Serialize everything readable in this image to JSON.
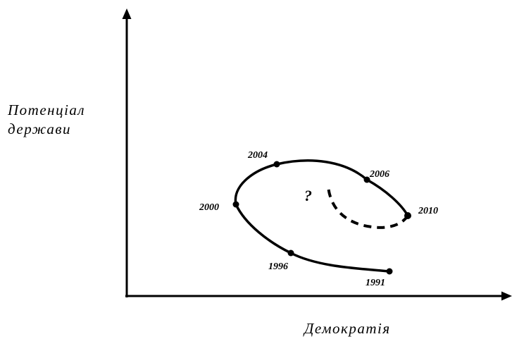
{
  "axes": {
    "y_label_lines": [
      "Потенціал",
      "держави"
    ],
    "x_label": "Демократія"
  },
  "points": [
    {
      "year": "1991"
    },
    {
      "year": "1996"
    },
    {
      "year": "2000"
    },
    {
      "year": "2004"
    },
    {
      "year": "2006"
    },
    {
      "year": "2010"
    }
  ],
  "uncertain_marker": "?",
  "colors": {
    "ink": "#000000",
    "background": "#ffffff"
  }
}
